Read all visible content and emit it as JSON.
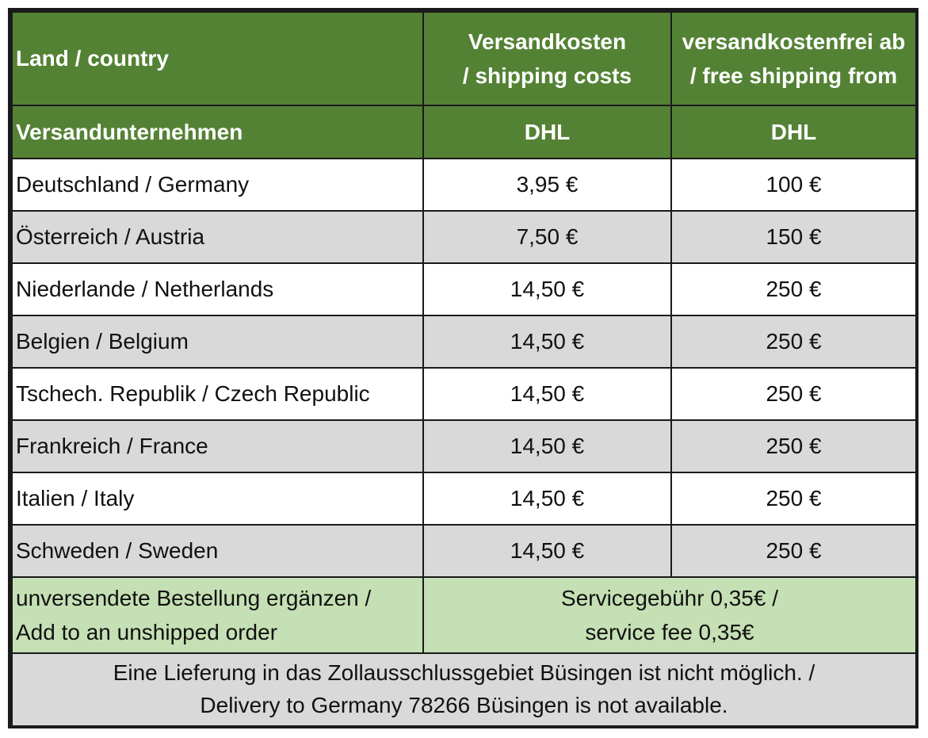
{
  "header": {
    "col1_title": "Land / country",
    "col2_title_line1": "Versandkosten",
    "col2_title_line2": "/ shipping costs",
    "col3_title_line1": "versandkostenfrei ab",
    "col3_title_line2": "/ free shipping from"
  },
  "carrier_row": {
    "label": "Versandunternehmen",
    "col2": "DHL",
    "col3": "DHL"
  },
  "rows": [
    {
      "country": "Deutschland / Germany",
      "shipping_cost": "3,95 €",
      "free_from": "100 €"
    },
    {
      "country": "Österreich / Austria",
      "shipping_cost": "7,50 €",
      "free_from": "150 €"
    },
    {
      "country": "Niederlande / Netherlands",
      "shipping_cost": "14,50 €",
      "free_from": "250 €"
    },
    {
      "country": "Belgien / Belgium",
      "shipping_cost": "14,50 €",
      "free_from": "250 €"
    },
    {
      "country": "Tschech. Republik / Czech Republic",
      "shipping_cost": "14,50 €",
      "free_from": "250 €"
    },
    {
      "country": "Frankreich / France",
      "shipping_cost": "14,50 €",
      "free_from": "250 €"
    },
    {
      "country": "Italien / Italy",
      "shipping_cost": "14,50 €",
      "free_from": "250 €"
    },
    {
      "country": "Schweden / Sweden",
      "shipping_cost": "14,50 €",
      "free_from": "250 €"
    }
  ],
  "service": {
    "label_line1": "unversendete Bestellung ergänzen /",
    "label_line2": "Add to an unshipped order",
    "fee_line1": "Servicegebühr 0,35€ /",
    "fee_line2": "service fee 0,35€"
  },
  "note": {
    "line1": "Eine Lieferung in das Zollausschlussgebiet Büsingen ist nicht möglich. /",
    "line2": "Delivery to Germany 78266 Büsingen is not available."
  },
  "colors": {
    "header_green": "#548235",
    "service_green": "#c5e0b4",
    "alt_row_gray": "#d9d9d9",
    "border": "#1a1a1a"
  }
}
